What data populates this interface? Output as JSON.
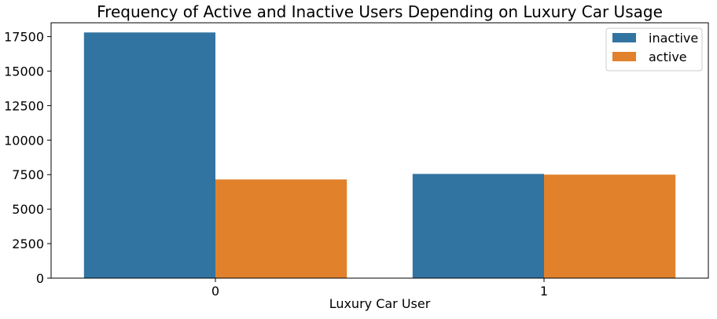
{
  "chart_data": {
    "type": "bar",
    "title": "Frequency of Active and Inactive Users Depending on Luxury Car Usage",
    "xlabel": "Luxury Car User",
    "ylabel": "",
    "categories": [
      "0",
      "1"
    ],
    "series": [
      {
        "name": "inactive",
        "values": [
          17800,
          7550
        ],
        "color": "#3274a1"
      },
      {
        "name": "active",
        "values": [
          7150,
          7500
        ],
        "color": "#e1812c"
      }
    ],
    "ylim": [
      0,
      18500
    ],
    "yticks": [
      0,
      2500,
      5000,
      7500,
      10000,
      12500,
      15000,
      17500
    ],
    "ytick_labels": [
      "0",
      "2500",
      "5000",
      "7500",
      "10000",
      "12500",
      "15000",
      "17500"
    ],
    "legend_position": "top-right",
    "grid": false
  }
}
